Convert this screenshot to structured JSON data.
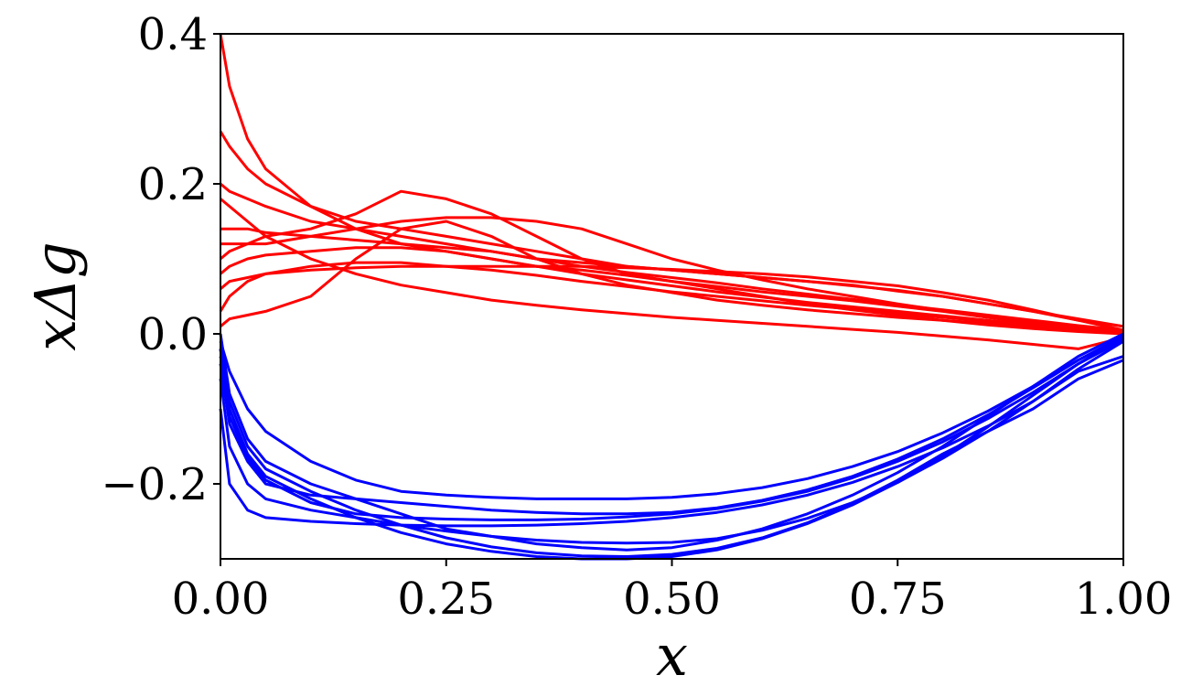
{
  "chart_data": {
    "type": "line",
    "title": "",
    "xlabel": "x",
    "ylabel": "xΔg",
    "xlim": [
      0.0,
      1.0
    ],
    "ylim": [
      -0.3,
      0.4
    ],
    "x_ticks": [
      0.0,
      0.25,
      0.5,
      0.75,
      1.0
    ],
    "x_tick_labels": [
      "0.00",
      "0.25",
      "0.50",
      "0.75",
      "1.00"
    ],
    "y_ticks": [
      -0.2,
      0.0,
      0.2,
      0.4
    ],
    "y_tick_labels": [
      "−0.2",
      "0.0",
      "0.2",
      "0.4"
    ],
    "grid": false,
    "legend": "none",
    "colors": {
      "upper_band": "#ff0000",
      "lower_band": "#0000ff"
    },
    "x": [
      0.0,
      0.01,
      0.03,
      0.05,
      0.1,
      0.15,
      0.2,
      0.25,
      0.3,
      0.35,
      0.4,
      0.45,
      0.5,
      0.55,
      0.6,
      0.65,
      0.7,
      0.75,
      0.8,
      0.85,
      0.9,
      0.95,
      1.0
    ],
    "series": [
      {
        "band": "upper",
        "values": [
          0.4,
          0.33,
          0.26,
          0.22,
          0.17,
          0.14,
          0.12,
          0.11,
          0.1,
          0.09,
          0.085,
          0.078,
          0.07,
          0.063,
          0.056,
          0.05,
          0.044,
          0.037,
          0.03,
          0.022,
          0.015,
          0.008,
          0.005
        ]
      },
      {
        "band": "upper",
        "values": [
          0.27,
          0.25,
          0.22,
          0.2,
          0.17,
          0.15,
          0.14,
          0.13,
          0.12,
          0.11,
          0.1,
          0.09,
          0.085,
          0.08,
          0.075,
          0.07,
          0.065,
          0.057,
          0.05,
          0.04,
          0.03,
          0.018,
          0.01
        ]
      },
      {
        "band": "upper",
        "values": [
          0.2,
          0.19,
          0.18,
          0.17,
          0.15,
          0.14,
          0.13,
          0.12,
          0.11,
          0.1,
          0.095,
          0.09,
          0.085,
          0.08,
          0.075,
          0.07,
          0.064,
          0.058,
          0.05,
          0.04,
          0.03,
          0.02,
          0.01
        ]
      },
      {
        "band": "upper",
        "values": [
          0.14,
          0.14,
          0.14,
          0.135,
          0.13,
          0.125,
          0.12,
          0.115,
          0.11,
          0.1,
          0.09,
          0.082,
          0.075,
          0.068,
          0.06,
          0.053,
          0.046,
          0.039,
          0.032,
          0.025,
          0.018,
          0.011,
          0.005
        ]
      },
      {
        "band": "upper",
        "values": [
          0.08,
          0.09,
          0.1,
          0.105,
          0.11,
          0.115,
          0.115,
          0.11,
          0.1,
          0.09,
          0.08,
          0.072,
          0.064,
          0.056,
          0.049,
          0.042,
          0.036,
          0.03,
          0.024,
          0.018,
          0.012,
          0.007,
          0.003
        ]
      },
      {
        "band": "upper",
        "values": [
          0.03,
          0.05,
          0.07,
          0.08,
          0.09,
          0.095,
          0.095,
          0.09,
          0.085,
          0.078,
          0.07,
          0.063,
          0.056,
          0.05,
          0.044,
          0.038,
          0.033,
          0.027,
          0.022,
          0.017,
          0.012,
          0.007,
          0.003
        ]
      },
      {
        "band": "upper",
        "values": [
          0.01,
          0.02,
          0.025,
          0.03,
          0.05,
          0.1,
          0.14,
          0.15,
          0.13,
          0.1,
          0.08,
          0.065,
          0.055,
          0.045,
          0.038,
          0.032,
          0.027,
          0.022,
          0.018,
          0.014,
          0.01,
          0.006,
          0.003
        ]
      },
      {
        "band": "upper",
        "values": [
          0.1,
          0.11,
          0.12,
          0.13,
          0.14,
          0.16,
          0.19,
          0.18,
          0.16,
          0.13,
          0.1,
          0.08,
          0.07,
          0.06,
          0.05,
          0.04,
          0.032,
          0.025,
          0.018,
          0.012,
          0.007,
          0.003,
          0.0
        ]
      },
      {
        "band": "upper",
        "values": [
          0.12,
          0.12,
          0.12,
          0.12,
          0.13,
          0.14,
          0.15,
          0.155,
          0.155,
          0.15,
          0.14,
          0.12,
          0.1,
          0.085,
          0.072,
          0.06,
          0.05,
          0.04,
          0.031,
          0.022,
          0.014,
          0.007,
          0.002
        ]
      },
      {
        "band": "upper",
        "values": [
          0.18,
          0.17,
          0.15,
          0.13,
          0.1,
          0.08,
          0.065,
          0.055,
          0.045,
          0.038,
          0.032,
          0.027,
          0.022,
          0.018,
          0.014,
          0.01,
          0.006,
          0.002,
          -0.003,
          -0.008,
          -0.014,
          -0.02,
          -0.005
        ]
      },
      {
        "band": "upper",
        "values": [
          0.06,
          0.07,
          0.075,
          0.08,
          0.085,
          0.088,
          0.09,
          0.09,
          0.09,
          0.09,
          0.09,
          0.088,
          0.086,
          0.083,
          0.08,
          0.076,
          0.07,
          0.064,
          0.055,
          0.045,
          0.032,
          0.018,
          0.005
        ]
      },
      {
        "band": "lower",
        "values": [
          0.0,
          -0.08,
          -0.14,
          -0.17,
          -0.2,
          -0.22,
          -0.24,
          -0.26,
          -0.27,
          -0.28,
          -0.285,
          -0.288,
          -0.285,
          -0.275,
          -0.26,
          -0.24,
          -0.215,
          -0.185,
          -0.15,
          -0.11,
          -0.07,
          -0.03,
          0.0
        ]
      },
      {
        "band": "lower",
        "values": [
          -0.02,
          -0.1,
          -0.16,
          -0.19,
          -0.22,
          -0.245,
          -0.265,
          -0.28,
          -0.29,
          -0.297,
          -0.3,
          -0.3,
          -0.297,
          -0.288,
          -0.273,
          -0.253,
          -0.228,
          -0.198,
          -0.163,
          -0.124,
          -0.082,
          -0.04,
          -0.005
        ]
      },
      {
        "band": "lower",
        "values": [
          -0.04,
          -0.12,
          -0.17,
          -0.2,
          -0.215,
          -0.22,
          -0.225,
          -0.23,
          -0.235,
          -0.238,
          -0.24,
          -0.24,
          -0.238,
          -0.232,
          -0.222,
          -0.208,
          -0.19,
          -0.167,
          -0.14,
          -0.108,
          -0.072,
          -0.035,
          -0.003
        ]
      },
      {
        "band": "lower",
        "values": [
          -0.01,
          -0.05,
          -0.1,
          -0.13,
          -0.17,
          -0.195,
          -0.21,
          -0.215,
          -0.218,
          -0.22,
          -0.22,
          -0.22,
          -0.218,
          -0.213,
          -0.205,
          -0.193,
          -0.177,
          -0.157,
          -0.132,
          -0.103,
          -0.07,
          -0.035,
          -0.005
        ]
      },
      {
        "band": "lower",
        "values": [
          -0.06,
          -0.15,
          -0.2,
          -0.22,
          -0.235,
          -0.245,
          -0.255,
          -0.263,
          -0.27,
          -0.275,
          -0.278,
          -0.279,
          -0.278,
          -0.273,
          -0.262,
          -0.246,
          -0.225,
          -0.198,
          -0.166,
          -0.13,
          -0.09,
          -0.047,
          -0.01
        ]
      },
      {
        "band": "lower",
        "values": [
          -0.1,
          -0.2,
          -0.235,
          -0.245,
          -0.25,
          -0.253,
          -0.255,
          -0.256,
          -0.256,
          -0.255,
          -0.253,
          -0.25,
          -0.245,
          -0.238,
          -0.228,
          -0.215,
          -0.198,
          -0.177,
          -0.152,
          -0.123,
          -0.09,
          -0.05,
          -0.03
        ]
      },
      {
        "band": "lower",
        "values": [
          -0.03,
          -0.09,
          -0.15,
          -0.18,
          -0.21,
          -0.235,
          -0.255,
          -0.272,
          -0.284,
          -0.292,
          -0.296,
          -0.297,
          -0.294,
          -0.286,
          -0.272,
          -0.252,
          -0.226,
          -0.195,
          -0.16,
          -0.13,
          -0.1,
          -0.06,
          -0.035
        ]
      },
      {
        "band": "lower",
        "values": [
          -0.02,
          -0.11,
          -0.165,
          -0.195,
          -0.225,
          -0.24,
          -0.245,
          -0.247,
          -0.248,
          -0.248,
          -0.247,
          -0.244,
          -0.24,
          -0.233,
          -0.223,
          -0.21,
          -0.192,
          -0.17,
          -0.144,
          -0.113,
          -0.078,
          -0.04,
          -0.008
        ]
      }
    ]
  }
}
